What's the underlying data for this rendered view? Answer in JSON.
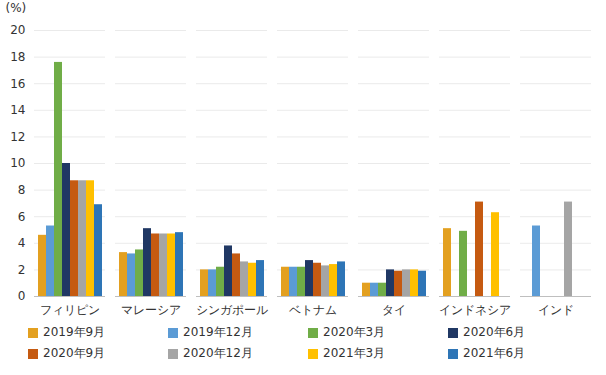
{
  "chart_data": {
    "type": "bar",
    "y_label": "(%)",
    "categories": [
      "フィリピン",
      "マレーシア",
      "シンガポール",
      "ベトナム",
      "タイ",
      "インドネシア",
      "インド"
    ],
    "series": [
      {
        "name": "2019年9月",
        "color": "#e3a020",
        "values": [
          4.6,
          3.3,
          2.0,
          2.2,
          1.0,
          5.1,
          null
        ]
      },
      {
        "name": "2019年12月",
        "color": "#5b9bd5",
        "values": [
          5.3,
          3.2,
          2.0,
          2.2,
          1.0,
          null,
          5.3
        ]
      },
      {
        "name": "2020年3月",
        "color": "#70ad47",
        "values": [
          17.6,
          3.5,
          2.2,
          2.2,
          1.0,
          4.9,
          null
        ]
      },
      {
        "name": "2020年6月",
        "color": "#203864",
        "values": [
          10.0,
          5.1,
          3.8,
          2.7,
          2.0,
          null,
          null
        ]
      },
      {
        "name": "2020年9月",
        "color": "#c55a11",
        "values": [
          8.7,
          4.7,
          3.2,
          2.5,
          1.9,
          7.1,
          null
        ]
      },
      {
        "name": "2020年12月",
        "color": "#a5a5a5",
        "values": [
          8.7,
          4.7,
          2.6,
          2.3,
          2.0,
          null,
          7.1
        ]
      },
      {
        "name": "2021年3月",
        "color": "#ffc000",
        "values": [
          8.7,
          4.7,
          2.5,
          2.4,
          2.0,
          6.3,
          null
        ]
      },
      {
        "name": "2021年6月",
        "color": "#2e75b6",
        "values": [
          6.9,
          4.8,
          2.7,
          2.6,
          1.9,
          null,
          null
        ]
      }
    ],
    "ylim": [
      0,
      20
    ],
    "yticks": [
      0,
      2,
      4,
      6,
      8,
      10,
      12,
      14,
      16,
      18,
      20
    ],
    "grid": true,
    "legend": "bottom"
  }
}
